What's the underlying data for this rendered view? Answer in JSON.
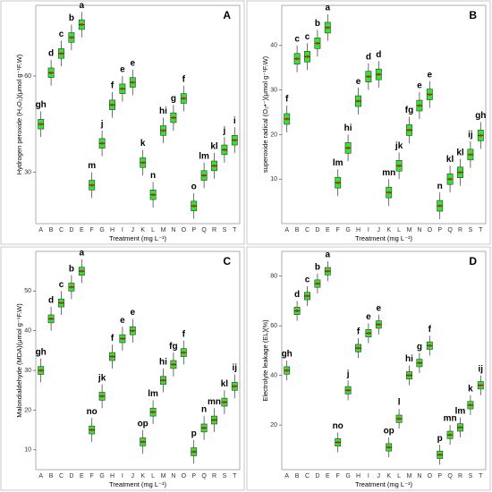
{
  "chart_data": [
    {
      "type": "box",
      "panel": "A",
      "ylabel": "Hydrogen peroxide (H₂O₂)(μmol g⁻¹F.W)",
      "xlabel": "Treatment (mg L⁻¹)",
      "color": "#2ee82e",
      "categories": [
        "A",
        "B",
        "C",
        "D",
        "E",
        "F",
        "G",
        "H",
        "I",
        "J",
        "K",
        "L",
        "M",
        "N",
        "O",
        "P",
        "Q",
        "R",
        "S",
        "T"
      ],
      "median": [
        45,
        61,
        67,
        72,
        76,
        26,
        39,
        51,
        56,
        58,
        33,
        23,
        43,
        47,
        53,
        19.5,
        29,
        32,
        37,
        40
      ],
      "q1": [
        43.5,
        59.5,
        65.5,
        70.5,
        74.5,
        24.5,
        37.5,
        49.5,
        54.5,
        56.5,
        31.5,
        21.5,
        41.5,
        45.5,
        51.5,
        18,
        27.5,
        30.5,
        35.5,
        38.5
      ],
      "q3": [
        46.5,
        62.5,
        68.5,
        73.5,
        77.5,
        27.5,
        40.5,
        52.5,
        57.5,
        59.5,
        34.5,
        24.5,
        44.5,
        48.5,
        54.5,
        21,
        30.5,
        33.5,
        38.5,
        41.5
      ],
      "low": [
        41,
        57,
        63,
        68,
        72,
        22,
        35,
        47,
        52,
        54,
        29,
        19,
        39,
        43,
        49,
        15.5,
        25,
        28,
        33,
        36
      ],
      "high": [
        49,
        65,
        71,
        76,
        80,
        30,
        43,
        55,
        60,
        62,
        37,
        27,
        47,
        51,
        57,
        23.5,
        33,
        36,
        41,
        44
      ],
      "annotations": [
        "gh",
        "d",
        "c",
        "b",
        "a",
        "m",
        "j",
        "f",
        "e",
        "e",
        "k",
        "n",
        "hi",
        "g",
        "f",
        "o",
        "lm",
        "kl",
        "j",
        "i"
      ],
      "ylim": [
        14,
        82
      ],
      "yticks": [
        30,
        60
      ]
    },
    {
      "type": "box",
      "panel": "B",
      "ylabel": "superoxide radical (O₂•⁻)(μmol g⁻¹F.W)",
      "xlabel": "Treatment (mg L⁻¹)",
      "color": "#2ee82e",
      "categories": [
        "A",
        "B",
        "C",
        "D",
        "E",
        "F",
        "G",
        "H",
        "I",
        "J",
        "K",
        "L",
        "M",
        "N",
        "O",
        "P",
        "Q",
        "R",
        "S",
        "T"
      ],
      "median": [
        23.5,
        37,
        37.5,
        40.5,
        44,
        9.2,
        17,
        27.5,
        33,
        33.5,
        7,
        13,
        21,
        26.5,
        29,
        4,
        10,
        11.5,
        15.5,
        19.8
      ],
      "q1": [
        22.3,
        35.8,
        36.3,
        39.3,
        42.8,
        8,
        15.8,
        26.3,
        31.8,
        32.3,
        5.8,
        11.8,
        19.8,
        25.3,
        27.8,
        2.8,
        8.8,
        10.3,
        14.3,
        18.6
      ],
      "q3": [
        24.7,
        38.2,
        38.7,
        41.7,
        45.2,
        10.4,
        18.2,
        28.7,
        34.2,
        34.7,
        8.2,
        14.2,
        22.2,
        27.7,
        30.2,
        5.2,
        11.2,
        12.7,
        16.7,
        21
      ],
      "low": [
        20.5,
        34,
        34.5,
        37.5,
        41,
        6.2,
        14,
        24.5,
        30,
        30.5,
        4,
        10,
        18,
        23.5,
        26,
        1,
        7,
        8.5,
        12.5,
        16.8
      ],
      "high": [
        26.5,
        40,
        40.5,
        43.5,
        47,
        12.2,
        20,
        30.5,
        36,
        36.5,
        10,
        16,
        24,
        29.5,
        32,
        7,
        13,
        14.5,
        18.5,
        22.8
      ],
      "annotations": [
        "f",
        "c",
        "c",
        "b",
        "a",
        "lm",
        "hi",
        "e",
        "d",
        "d",
        "mn",
        "jk",
        "fg",
        "e",
        "e",
        "n",
        "kl",
        "kl",
        "ij",
        "gh"
      ],
      "ylim": [
        0,
        49
      ],
      "yticks": [
        10,
        20,
        30,
        40
      ]
    },
    {
      "type": "box",
      "panel": "C",
      "ylabel": "Malondialdehyde (MDA)(μmol g⁻¹F.W)",
      "xlabel": "Treatment (mg L⁻¹)",
      "color": "#2ee82e",
      "categories": [
        "A",
        "B",
        "C",
        "D",
        "E",
        "F",
        "G",
        "H",
        "I",
        "J",
        "K",
        "L",
        "M",
        "N",
        "O",
        "P",
        "Q",
        "R",
        "S",
        "T"
      ],
      "median": [
        30,
        43,
        47,
        51,
        55,
        15,
        23.5,
        33.5,
        38,
        40,
        12,
        19.5,
        27.5,
        31.5,
        34.5,
        9.5,
        15.5,
        17.5,
        22,
        26
      ],
      "q1": [
        29,
        42,
        46,
        50,
        54,
        14,
        22.5,
        32.5,
        37,
        39,
        11,
        18.5,
        26.5,
        30.5,
        33.5,
        8.5,
        14.5,
        16.5,
        21,
        25
      ],
      "q3": [
        31,
        44,
        48,
        52,
        56,
        16,
        24.5,
        34.5,
        39,
        41,
        13,
        20.5,
        28.5,
        32.5,
        35.5,
        10.5,
        16.5,
        18.5,
        23,
        27
      ],
      "low": [
        27,
        40,
        44,
        48,
        52,
        12,
        20.5,
        30.5,
        35,
        37,
        9,
        16.5,
        24.5,
        28.5,
        31.5,
        6.5,
        12.5,
        14.5,
        19,
        23
      ],
      "high": [
        33,
        46,
        50,
        54,
        58,
        18,
        26.5,
        36.5,
        41,
        43,
        15,
        22.5,
        30.5,
        34.5,
        37.5,
        12.5,
        18.5,
        20.5,
        25,
        29
      ],
      "annotations": [
        "gh",
        "d",
        "c",
        "b",
        "a",
        "no",
        "jk",
        "f",
        "e",
        "e",
        "op",
        "lm",
        "hi",
        "fg",
        "f",
        "p",
        "n",
        "mn",
        "kl",
        "ij"
      ],
      "ylim": [
        5,
        60
      ],
      "yticks": [
        10,
        20,
        30,
        40,
        50
      ]
    },
    {
      "type": "box",
      "panel": "D",
      "ylabel": "Electrolyte leakage (EL)(%)",
      "xlabel": "Treatment (mg L⁻¹)",
      "color": "#2ee82e",
      "categories": [
        "A",
        "B",
        "C",
        "D",
        "E",
        "F",
        "G",
        "H",
        "I",
        "J",
        "K",
        "L",
        "M",
        "N",
        "O",
        "P",
        "Q",
        "R",
        "S",
        "T"
      ],
      "median": [
        42,
        66,
        72,
        77,
        82,
        13,
        34,
        51,
        57,
        60.5,
        11,
        22.5,
        40,
        45,
        52,
        8,
        16,
        19,
        28,
        36
      ],
      "q1": [
        40.5,
        64.5,
        70.5,
        75.5,
        80.5,
        11.5,
        32.5,
        49.5,
        55.5,
        59,
        9.5,
        21,
        38.5,
        43.5,
        50.5,
        6.5,
        14.5,
        17.5,
        26.5,
        34.5
      ],
      "q3": [
        43.5,
        67.5,
        73.5,
        78.5,
        83.5,
        14.5,
        35.5,
        52.5,
        58.5,
        62,
        12.5,
        24,
        41.5,
        46.5,
        53.5,
        9.5,
        17.5,
        20.5,
        29.5,
        37.5
      ],
      "low": [
        38,
        62,
        68,
        73,
        78,
        9,
        30,
        47,
        53,
        56.5,
        7,
        18.5,
        36,
        41,
        48,
        4,
        12,
        15,
        24,
        32
      ],
      "high": [
        46,
        70,
        76,
        81,
        86,
        17,
        38,
        55,
        61,
        64.5,
        15,
        26.5,
        44,
        49,
        56,
        12,
        20,
        23,
        32,
        40
      ],
      "annotations": [
        "gh",
        "d",
        "c",
        "b",
        "a",
        "no",
        "j",
        "f",
        "e",
        "e",
        "op",
        "l",
        "hi",
        "g",
        "f",
        "p",
        "mn",
        "lm",
        "k",
        "ij"
      ],
      "ylim": [
        2,
        90
      ],
      "yticks": [
        20,
        40,
        60,
        80
      ]
    }
  ]
}
